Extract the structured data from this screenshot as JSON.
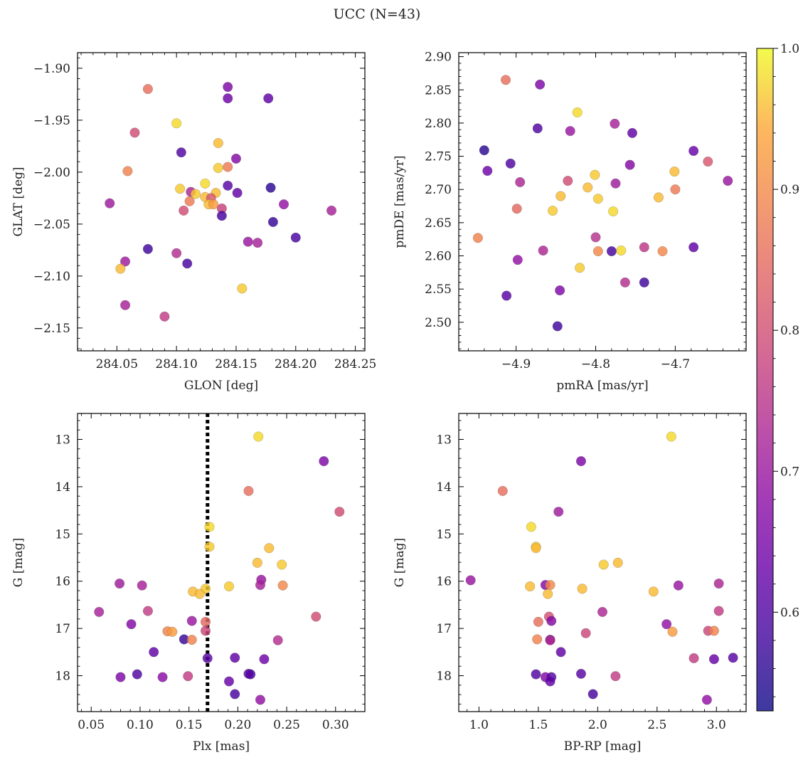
{
  "figure_title": "UCC (N=43)",
  "colorbar": {
    "colormap": "plasma",
    "range": [
      0.53,
      1.0
    ],
    "ticks": [
      0.6,
      0.7,
      0.8,
      0.9,
      1.0
    ],
    "tick_labels": [
      "0.6",
      "0.7",
      "0.8",
      "0.9",
      "1.0"
    ]
  },
  "chart_data": [
    {
      "type": "scatter",
      "id": "glon-glat",
      "xlabel": "GLON [deg]",
      "ylabel": "GLAT [deg]",
      "xlim": [
        284.017,
        284.258
      ],
      "ylim": [
        -2.172,
        -1.885
      ],
      "y_inverted": false,
      "xticks": [
        284.05,
        284.1,
        284.15,
        284.2,
        284.25
      ],
      "xtick_labels": [
        "284.05",
        "284.10",
        "284.15",
        "284.20",
        "284.25"
      ],
      "yticks": [
        -2.15,
        -2.1,
        -2.05,
        -2.0,
        -1.95,
        -1.9
      ],
      "ytick_labels": [
        "−2.15",
        "−2.10",
        "−2.05",
        "−2.00",
        "−1.95",
        "−1.90"
      ],
      "points": [
        {
          "x": 284.076,
          "y": -1.92,
          "c": 0.86
        },
        {
          "x": 284.143,
          "y": -1.918,
          "c": 0.66
        },
        {
          "x": 284.143,
          "y": -1.929,
          "c": 0.64
        },
        {
          "x": 284.177,
          "y": -1.929,
          "c": 0.62
        },
        {
          "x": 284.1,
          "y": -1.953,
          "c": 0.98
        },
        {
          "x": 284.065,
          "y": -1.962,
          "c": 0.8
        },
        {
          "x": 284.135,
          "y": -1.972,
          "c": 0.96
        },
        {
          "x": 284.104,
          "y": -1.981,
          "c": 0.6
        },
        {
          "x": 284.15,
          "y": -1.987,
          "c": 0.67
        },
        {
          "x": 284.059,
          "y": -1.999,
          "c": 0.89
        },
        {
          "x": 284.143,
          "y": -1.995,
          "c": 0.88
        },
        {
          "x": 284.135,
          "y": -1.996,
          "c": 0.97
        },
        {
          "x": 284.124,
          "y": -2.011,
          "c": 0.98
        },
        {
          "x": 284.143,
          "y": -2.013,
          "c": 0.61
        },
        {
          "x": 284.103,
          "y": -2.016,
          "c": 0.97
        },
        {
          "x": 284.179,
          "y": -2.015,
          "c": 0.56
        },
        {
          "x": 284.112,
          "y": -2.019,
          "c": 0.73
        },
        {
          "x": 284.151,
          "y": -2.02,
          "c": 0.62
        },
        {
          "x": 284.116,
          "y": -2.021,
          "c": 0.97
        },
        {
          "x": 284.133,
          "y": -2.02,
          "c": 0.96
        },
        {
          "x": 284.124,
          "y": -2.024,
          "c": 0.96
        },
        {
          "x": 284.129,
          "y": -2.025,
          "c": 0.82
        },
        {
          "x": 284.111,
          "y": -2.028,
          "c": 0.88
        },
        {
          "x": 284.127,
          "y": -2.031,
          "c": 0.96
        },
        {
          "x": 284.131,
          "y": -2.031,
          "c": 0.93
        },
        {
          "x": 284.044,
          "y": -2.03,
          "c": 0.71
        },
        {
          "x": 284.19,
          "y": -2.031,
          "c": 0.69
        },
        {
          "x": 284.138,
          "y": -2.035,
          "c": 0.78
        },
        {
          "x": 284.106,
          "y": -2.037,
          "c": 0.8
        },
        {
          "x": 284.23,
          "y": -2.037,
          "c": 0.72
        },
        {
          "x": 284.138,
          "y": -2.042,
          "c": 0.59
        },
        {
          "x": 284.181,
          "y": -2.048,
          "c": 0.57
        },
        {
          "x": 284.2,
          "y": -2.063,
          "c": 0.59
        },
        {
          "x": 284.16,
          "y": -2.067,
          "c": 0.7
        },
        {
          "x": 284.168,
          "y": -2.068,
          "c": 0.72
        },
        {
          "x": 284.076,
          "y": -2.074,
          "c": 0.58
        },
        {
          "x": 284.1,
          "y": -2.078,
          "c": 0.74
        },
        {
          "x": 284.057,
          "y": -2.086,
          "c": 0.71
        },
        {
          "x": 284.109,
          "y": -2.088,
          "c": 0.59
        },
        {
          "x": 284.053,
          "y": -2.093,
          "c": 0.96
        },
        {
          "x": 284.155,
          "y": -2.112,
          "c": 0.97
        },
        {
          "x": 284.057,
          "y": -2.128,
          "c": 0.72
        },
        {
          "x": 284.09,
          "y": -2.139,
          "c": 0.77
        }
      ]
    },
    {
      "type": "scatter",
      "id": "pmra-pmde",
      "xlabel": "pmRA [mas/yr]",
      "ylabel": "pmDE [mas/yr]",
      "xlim": [
        -4.972,
        -4.611
      ],
      "ylim": [
        2.457,
        2.906
      ],
      "y_inverted": false,
      "xticks": [
        -4.9,
        -4.8,
        -4.7
      ],
      "xtick_labels": [
        "−4.9",
        "−4.8",
        "−4.7"
      ],
      "yticks": [
        2.5,
        2.55,
        2.6,
        2.65,
        2.7,
        2.75,
        2.8,
        2.85,
        2.9
      ],
      "ytick_labels": [
        "2.50",
        "2.55",
        "2.60",
        "2.65",
        "2.70",
        "2.75",
        "2.80",
        "2.85",
        "2.90"
      ],
      "points": [
        {
          "x": -4.913,
          "y": 2.865,
          "c": 0.86
        },
        {
          "x": -4.87,
          "y": 2.858,
          "c": 0.66
        },
        {
          "x": -4.823,
          "y": 2.816,
          "c": 0.98
        },
        {
          "x": -4.873,
          "y": 2.792,
          "c": 0.6
        },
        {
          "x": -4.832,
          "y": 2.788,
          "c": 0.7
        },
        {
          "x": -4.776,
          "y": 2.799,
          "c": 0.72
        },
        {
          "x": -4.754,
          "y": 2.785,
          "c": 0.62
        },
        {
          "x": -4.94,
          "y": 2.759,
          "c": 0.56
        },
        {
          "x": -4.677,
          "y": 2.758,
          "c": 0.63
        },
        {
          "x": -4.936,
          "y": 2.728,
          "c": 0.64
        },
        {
          "x": -4.907,
          "y": 2.739,
          "c": 0.6
        },
        {
          "x": -4.757,
          "y": 2.737,
          "c": 0.67
        },
        {
          "x": -4.701,
          "y": 2.727,
          "c": 0.96
        },
        {
          "x": -4.659,
          "y": 2.742,
          "c": 0.82
        },
        {
          "x": -4.895,
          "y": 2.711,
          "c": 0.73
        },
        {
          "x": -4.835,
          "y": 2.713,
          "c": 0.8
        },
        {
          "x": -4.801,
          "y": 2.722,
          "c": 0.97
        },
        {
          "x": -4.775,
          "y": 2.709,
          "c": 0.71
        },
        {
          "x": -4.634,
          "y": 2.713,
          "c": 0.7
        },
        {
          "x": -4.81,
          "y": 2.703,
          "c": 0.96
        },
        {
          "x": -4.7,
          "y": 2.7,
          "c": 0.88
        },
        {
          "x": -4.844,
          "y": 2.69,
          "c": 0.96
        },
        {
          "x": -4.797,
          "y": 2.686,
          "c": 0.97
        },
        {
          "x": -4.721,
          "y": 2.688,
          "c": 0.96
        },
        {
          "x": -4.899,
          "y": 2.671,
          "c": 0.85
        },
        {
          "x": -4.854,
          "y": 2.668,
          "c": 0.97
        },
        {
          "x": -4.778,
          "y": 2.667,
          "c": 0.98
        },
        {
          "x": -4.8,
          "y": 2.628,
          "c": 0.75
        },
        {
          "x": -4.948,
          "y": 2.627,
          "c": 0.89
        },
        {
          "x": -4.866,
          "y": 2.608,
          "c": 0.73
        },
        {
          "x": -4.797,
          "y": 2.607,
          "c": 0.9
        },
        {
          "x": -4.78,
          "y": 2.607,
          "c": 0.59
        },
        {
          "x": -4.768,
          "y": 2.608,
          "c": 0.98
        },
        {
          "x": -4.739,
          "y": 2.613,
          "c": 0.76
        },
        {
          "x": -4.716,
          "y": 2.607,
          "c": 0.9
        },
        {
          "x": -4.677,
          "y": 2.613,
          "c": 0.62
        },
        {
          "x": -4.898,
          "y": 2.594,
          "c": 0.69
        },
        {
          "x": -4.82,
          "y": 2.582,
          "c": 0.97
        },
        {
          "x": -4.763,
          "y": 2.56,
          "c": 0.74
        },
        {
          "x": -4.739,
          "y": 2.56,
          "c": 0.58
        },
        {
          "x": -4.912,
          "y": 2.54,
          "c": 0.61
        },
        {
          "x": -4.845,
          "y": 2.548,
          "c": 0.66
        },
        {
          "x": -4.848,
          "y": 2.494,
          "c": 0.58
        }
      ]
    },
    {
      "type": "scatter",
      "id": "plx-g",
      "xlabel": "Plx [mas]",
      "ylabel": "G [mag]",
      "xlim": [
        0.036,
        0.33
      ],
      "ylim": [
        12.45,
        18.76
      ],
      "y_inverted": true,
      "vline": {
        "x": 0.169,
        "style": "dotted"
      },
      "xticks": [
        0.05,
        0.1,
        0.15,
        0.2,
        0.25,
        0.3
      ],
      "xtick_labels": [
        "0.05",
        "0.10",
        "0.15",
        "0.20",
        "0.25",
        "0.30"
      ],
      "yticks": [
        13,
        14,
        15,
        16,
        17,
        18
      ],
      "ytick_labels": [
        "13",
        "14",
        "15",
        "16",
        "17",
        "18"
      ],
      "points": [
        {
          "x": 0.221,
          "y": 12.94,
          "c": 0.98
        },
        {
          "x": 0.288,
          "y": 13.46,
          "c": 0.66
        },
        {
          "x": 0.211,
          "y": 14.09,
          "c": 0.86
        },
        {
          "x": 0.304,
          "y": 14.53,
          "c": 0.8
        },
        {
          "x": 0.171,
          "y": 14.85,
          "c": 0.98
        },
        {
          "x": 0.171,
          "y": 15.27,
          "c": 0.97
        },
        {
          "x": 0.232,
          "y": 15.3,
          "c": 0.96
        },
        {
          "x": 0.22,
          "y": 15.61,
          "c": 0.96
        },
        {
          "x": 0.245,
          "y": 15.65,
          "c": 0.97
        },
        {
          "x": 0.224,
          "y": 15.97,
          "c": 0.7
        },
        {
          "x": 0.079,
          "y": 16.05,
          "c": 0.71
        },
        {
          "x": 0.102,
          "y": 16.09,
          "c": 0.72
        },
        {
          "x": 0.223,
          "y": 16.08,
          "c": 0.72
        },
        {
          "x": 0.246,
          "y": 16.09,
          "c": 0.9
        },
        {
          "x": 0.191,
          "y": 16.11,
          "c": 0.97
        },
        {
          "x": 0.167,
          "y": 16.16,
          "c": 0.97
        },
        {
          "x": 0.154,
          "y": 16.22,
          "c": 0.96
        },
        {
          "x": 0.161,
          "y": 16.27,
          "c": 0.96
        },
        {
          "x": 0.058,
          "y": 16.65,
          "c": 0.72
        },
        {
          "x": 0.108,
          "y": 16.63,
          "c": 0.77
        },
        {
          "x": 0.28,
          "y": 16.75,
          "c": 0.8
        },
        {
          "x": 0.153,
          "y": 16.84,
          "c": 0.7
        },
        {
          "x": 0.167,
          "y": 16.86,
          "c": 0.85
        },
        {
          "x": 0.091,
          "y": 16.91,
          "c": 0.67
        },
        {
          "x": 0.128,
          "y": 17.06,
          "c": 0.89
        },
        {
          "x": 0.133,
          "y": 17.07,
          "c": 0.93
        },
        {
          "x": 0.167,
          "y": 17.05,
          "c": 0.79
        },
        {
          "x": 0.114,
          "y": 17.5,
          "c": 0.62
        },
        {
          "x": 0.145,
          "y": 17.23,
          "c": 0.57
        },
        {
          "x": 0.153,
          "y": 17.24,
          "c": 0.89
        },
        {
          "x": 0.241,
          "y": 17.25,
          "c": 0.74
        },
        {
          "x": 0.169,
          "y": 17.63,
          "c": 0.61
        },
        {
          "x": 0.197,
          "y": 17.62,
          "c": 0.62
        },
        {
          "x": 0.227,
          "y": 17.65,
          "c": 0.64
        },
        {
          "x": 0.08,
          "y": 18.03,
          "c": 0.66
        },
        {
          "x": 0.097,
          "y": 17.97,
          "c": 0.6
        },
        {
          "x": 0.123,
          "y": 18.03,
          "c": 0.68
        },
        {
          "x": 0.149,
          "y": 18.01,
          "c": 0.77
        },
        {
          "x": 0.211,
          "y": 17.96,
          "c": 0.61
        },
        {
          "x": 0.191,
          "y": 18.12,
          "c": 0.63
        },
        {
          "x": 0.197,
          "y": 18.39,
          "c": 0.59
        },
        {
          "x": 0.223,
          "y": 18.51,
          "c": 0.69
        },
        {
          "x": 0.213,
          "y": 17.97,
          "c": 0.6
        }
      ]
    },
    {
      "type": "scatter",
      "id": "bprp-g",
      "xlabel": "BP-RP [mag]",
      "ylabel": "G [mag]",
      "xlim": [
        0.83,
        3.25
      ],
      "ylim": [
        12.45,
        18.76
      ],
      "y_inverted": true,
      "xticks": [
        1.0,
        1.5,
        2.0,
        2.5,
        3.0
      ],
      "xtick_labels": [
        "1.0",
        "1.5",
        "2.0",
        "2.5",
        "3.0"
      ],
      "yticks": [
        13,
        14,
        15,
        16,
        17,
        18
      ],
      "ytick_labels": [
        "13",
        "14",
        "15",
        "16",
        "17",
        "18"
      ],
      "points": [
        {
          "x": 2.62,
          "y": 12.94,
          "c": 0.98
        },
        {
          "x": 1.86,
          "y": 13.46,
          "c": 0.66
        },
        {
          "x": 1.2,
          "y": 14.09,
          "c": 0.86
        },
        {
          "x": 1.67,
          "y": 14.53,
          "c": 0.71
        },
        {
          "x": 1.44,
          "y": 14.85,
          "c": 0.98
        },
        {
          "x": 1.48,
          "y": 15.27,
          "c": 0.97
        },
        {
          "x": 1.48,
          "y": 15.3,
          "c": 0.96
        },
        {
          "x": 2.17,
          "y": 15.61,
          "c": 0.96
        },
        {
          "x": 2.05,
          "y": 15.65,
          "c": 0.97
        },
        {
          "x": 0.93,
          "y": 15.98,
          "c": 0.7
        },
        {
          "x": 1.43,
          "y": 16.11,
          "c": 0.96
        },
        {
          "x": 1.56,
          "y": 16.08,
          "c": 0.67
        },
        {
          "x": 1.6,
          "y": 16.08,
          "c": 0.9
        },
        {
          "x": 1.87,
          "y": 16.16,
          "c": 0.96
        },
        {
          "x": 2.68,
          "y": 16.09,
          "c": 0.7
        },
        {
          "x": 3.02,
          "y": 16.05,
          "c": 0.73
        },
        {
          "x": 2.47,
          "y": 16.22,
          "c": 0.96
        },
        {
          "x": 1.58,
          "y": 16.27,
          "c": 0.96
        },
        {
          "x": 2.04,
          "y": 16.65,
          "c": 0.73
        },
        {
          "x": 3.02,
          "y": 16.63,
          "c": 0.77
        },
        {
          "x": 1.59,
          "y": 16.75,
          "c": 0.81
        },
        {
          "x": 1.61,
          "y": 16.84,
          "c": 0.67
        },
        {
          "x": 1.5,
          "y": 16.86,
          "c": 0.86
        },
        {
          "x": 2.58,
          "y": 16.91,
          "c": 0.69
        },
        {
          "x": 1.9,
          "y": 17.1,
          "c": 0.79
        },
        {
          "x": 2.63,
          "y": 17.07,
          "c": 0.93
        },
        {
          "x": 2.93,
          "y": 17.05,
          "c": 0.79
        },
        {
          "x": 2.98,
          "y": 17.05,
          "c": 0.89
        },
        {
          "x": 1.49,
          "y": 17.23,
          "c": 0.89
        },
        {
          "x": 1.6,
          "y": 17.24,
          "c": 0.6
        },
        {
          "x": 1.6,
          "y": 17.25,
          "c": 0.74
        },
        {
          "x": 1.69,
          "y": 17.5,
          "c": 0.62
        },
        {
          "x": 2.81,
          "y": 17.63,
          "c": 0.77
        },
        {
          "x": 2.98,
          "y": 17.65,
          "c": 0.63
        },
        {
          "x": 3.14,
          "y": 17.62,
          "c": 0.61
        },
        {
          "x": 1.48,
          "y": 17.97,
          "c": 0.6
        },
        {
          "x": 1.56,
          "y": 18.03,
          "c": 0.67
        },
        {
          "x": 1.61,
          "y": 18.03,
          "c": 0.61
        },
        {
          "x": 1.86,
          "y": 17.96,
          "c": 0.61
        },
        {
          "x": 2.15,
          "y": 18.01,
          "c": 0.77
        },
        {
          "x": 1.6,
          "y": 18.12,
          "c": 0.62
        },
        {
          "x": 1.96,
          "y": 18.39,
          "c": 0.59
        },
        {
          "x": 2.92,
          "y": 18.51,
          "c": 0.69
        }
      ]
    }
  ]
}
